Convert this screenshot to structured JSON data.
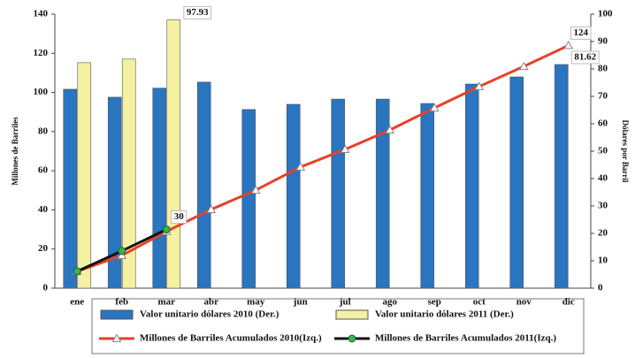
{
  "chart_data": {
    "type": "bar",
    "y_label": "Millones de Barriles",
    "y2_label": "Dólares por Barril",
    "categories": [
      "ene",
      "feb",
      "mar",
      "abr",
      "may",
      "jun",
      "jul",
      "ago",
      "sep",
      "oct",
      "nov",
      "dic"
    ],
    "ylim": [
      0,
      140
    ],
    "yticks": [
      0,
      20,
      40,
      60,
      80,
      100,
      120,
      140
    ],
    "y2lim": [
      0,
      100
    ],
    "y2ticks": [
      0,
      10,
      20,
      30,
      40,
      50,
      60,
      70,
      80,
      90,
      100
    ],
    "series": [
      {
        "name": "Valor unitario dólares 2010 (Der.)",
        "type": "bar",
        "axis": "y2",
        "color": "#2a75c0",
        "values": [
          72.6,
          69.7,
          73,
          75.2,
          65.2,
          67.1,
          69,
          69,
          67.4,
          74.5,
          77.1,
          81.62
        ],
        "value_labels": [
          null,
          null,
          null,
          null,
          null,
          null,
          null,
          null,
          null,
          null,
          null,
          "81.62"
        ]
      },
      {
        "name": "Valor unitario dólares 2011 (Der.)",
        "type": "bar",
        "axis": "y2",
        "color": "#f4f1a2",
        "values": [
          82.3,
          83.6,
          97.93,
          null,
          null,
          null,
          null,
          null,
          null,
          null,
          null,
          null
        ],
        "value_labels": [
          null,
          null,
          "97.93",
          null,
          null,
          null,
          null,
          null,
          null,
          null,
          null,
          null
        ]
      },
      {
        "name": "Millones de Barriles Acumulados 2010(Izq.)",
        "type": "line",
        "color": "#e8402a",
        "values": [
          8.6,
          16.7,
          29,
          40.2,
          50.1,
          61.9,
          70.9,
          80.8,
          92.1,
          103,
          113.3,
          124
        ],
        "value_labels": [
          null,
          null,
          null,
          null,
          null,
          null,
          null,
          null,
          null,
          null,
          null,
          "124"
        ]
      },
      {
        "name": "Millones de Barriles Acumulados 2011(Izq.)",
        "type": "line",
        "color": "#111111",
        "marker_color": "#3cb050",
        "values": [
          8.6,
          19,
          30,
          null,
          null,
          null,
          null,
          null,
          null,
          null,
          null,
          null
        ],
        "value_labels": [
          null,
          null,
          "30",
          null,
          null,
          null,
          null,
          null,
          null,
          null,
          null,
          null
        ]
      }
    ]
  }
}
